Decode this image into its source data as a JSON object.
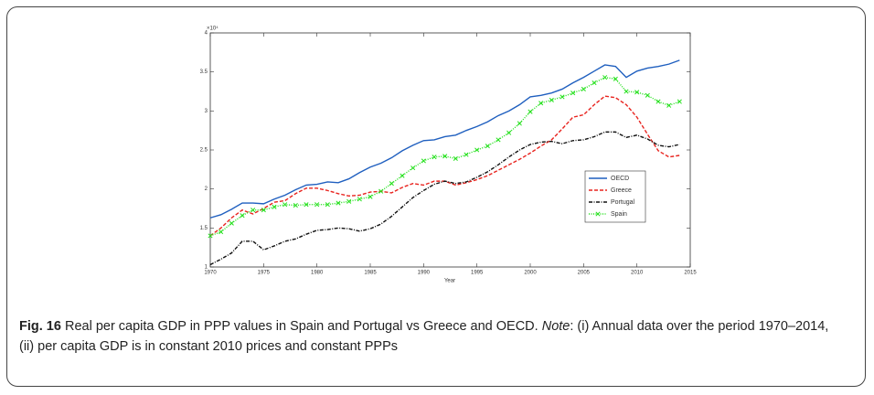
{
  "chart_data": {
    "type": "line",
    "xlabel": "Year",
    "y_scale_label": "×10⁴",
    "x": [
      1970,
      1971,
      1972,
      1973,
      1974,
      1975,
      1976,
      1977,
      1978,
      1979,
      1980,
      1981,
      1982,
      1983,
      1984,
      1985,
      1986,
      1987,
      1988,
      1989,
      1990,
      1991,
      1992,
      1993,
      1994,
      1995,
      1996,
      1997,
      1998,
      1999,
      2000,
      2001,
      2002,
      2003,
      2004,
      2005,
      2006,
      2007,
      2008,
      2009,
      2010,
      2011,
      2012,
      2013,
      2014
    ],
    "xlim": [
      1970,
      2015
    ],
    "xticks": [
      1970,
      1975,
      1980,
      1985,
      1990,
      1995,
      2000,
      2005,
      2010,
      2015
    ],
    "ylim": [
      1,
      4
    ],
    "yticks": [
      1,
      1.5,
      2,
      2.5,
      3,
      3.5,
      4
    ],
    "legend": "right",
    "grid": false,
    "series": [
      {
        "name": "OECD",
        "color": "#1f5fbf",
        "dash": "solid",
        "marker": "none",
        "values": [
          1.63,
          1.67,
          1.74,
          1.82,
          1.82,
          1.81,
          1.87,
          1.92,
          1.99,
          2.05,
          2.06,
          2.09,
          2.08,
          2.13,
          2.21,
          2.28,
          2.33,
          2.4,
          2.49,
          2.56,
          2.62,
          2.63,
          2.67,
          2.69,
          2.75,
          2.8,
          2.86,
          2.94,
          3.0,
          3.08,
          3.18,
          3.2,
          3.23,
          3.28,
          3.36,
          3.43,
          3.51,
          3.59,
          3.57,
          3.43,
          3.51,
          3.55,
          3.57,
          3.6,
          3.65
        ]
      },
      {
        "name": "Greece",
        "color": "#e8231e",
        "dash": "dashed",
        "marker": "none",
        "values": [
          1.4,
          1.5,
          1.63,
          1.73,
          1.68,
          1.75,
          1.83,
          1.85,
          1.94,
          2.01,
          2.01,
          1.98,
          1.94,
          1.91,
          1.92,
          1.96,
          1.97,
          1.95,
          2.02,
          2.07,
          2.05,
          2.1,
          2.1,
          2.05,
          2.08,
          2.12,
          2.17,
          2.24,
          2.31,
          2.38,
          2.46,
          2.55,
          2.63,
          2.77,
          2.92,
          2.95,
          3.08,
          3.19,
          3.17,
          3.08,
          2.92,
          2.7,
          2.49,
          2.41,
          2.43
        ]
      },
      {
        "name": "Portugal",
        "color": "#111111",
        "dash": "dashdot",
        "marker": "none",
        "values": [
          1.03,
          1.1,
          1.18,
          1.33,
          1.33,
          1.22,
          1.27,
          1.33,
          1.36,
          1.42,
          1.47,
          1.48,
          1.5,
          1.49,
          1.46,
          1.49,
          1.55,
          1.65,
          1.77,
          1.89,
          1.98,
          2.06,
          2.1,
          2.07,
          2.09,
          2.15,
          2.22,
          2.31,
          2.41,
          2.5,
          2.57,
          2.6,
          2.61,
          2.58,
          2.62,
          2.63,
          2.67,
          2.73,
          2.73,
          2.66,
          2.69,
          2.64,
          2.56,
          2.54,
          2.57
        ]
      },
      {
        "name": "Spain",
        "color": "#22e01a",
        "dash": "dotted",
        "marker": "x",
        "values": [
          1.4,
          1.45,
          1.56,
          1.66,
          1.73,
          1.73,
          1.77,
          1.8,
          1.79,
          1.8,
          1.8,
          1.8,
          1.82,
          1.84,
          1.87,
          1.9,
          1.97,
          2.07,
          2.17,
          2.27,
          2.36,
          2.41,
          2.42,
          2.39,
          2.44,
          2.5,
          2.55,
          2.63,
          2.72,
          2.84,
          2.99,
          3.1,
          3.14,
          3.18,
          3.23,
          3.28,
          3.36,
          3.43,
          3.41,
          3.25,
          3.24,
          3.2,
          3.12,
          3.07,
          3.12
        ]
      }
    ]
  },
  "caption": {
    "label": "Fig. 16",
    "text": " Real per capita GDP in PPP values in Spain and Portugal vs Greece and OECD. ",
    "note_label": "Note",
    "note_text": ": (i) Annual data over the period 1970–2014, (ii) per capita GDP is in constant 2010 prices and constant PPPs"
  }
}
